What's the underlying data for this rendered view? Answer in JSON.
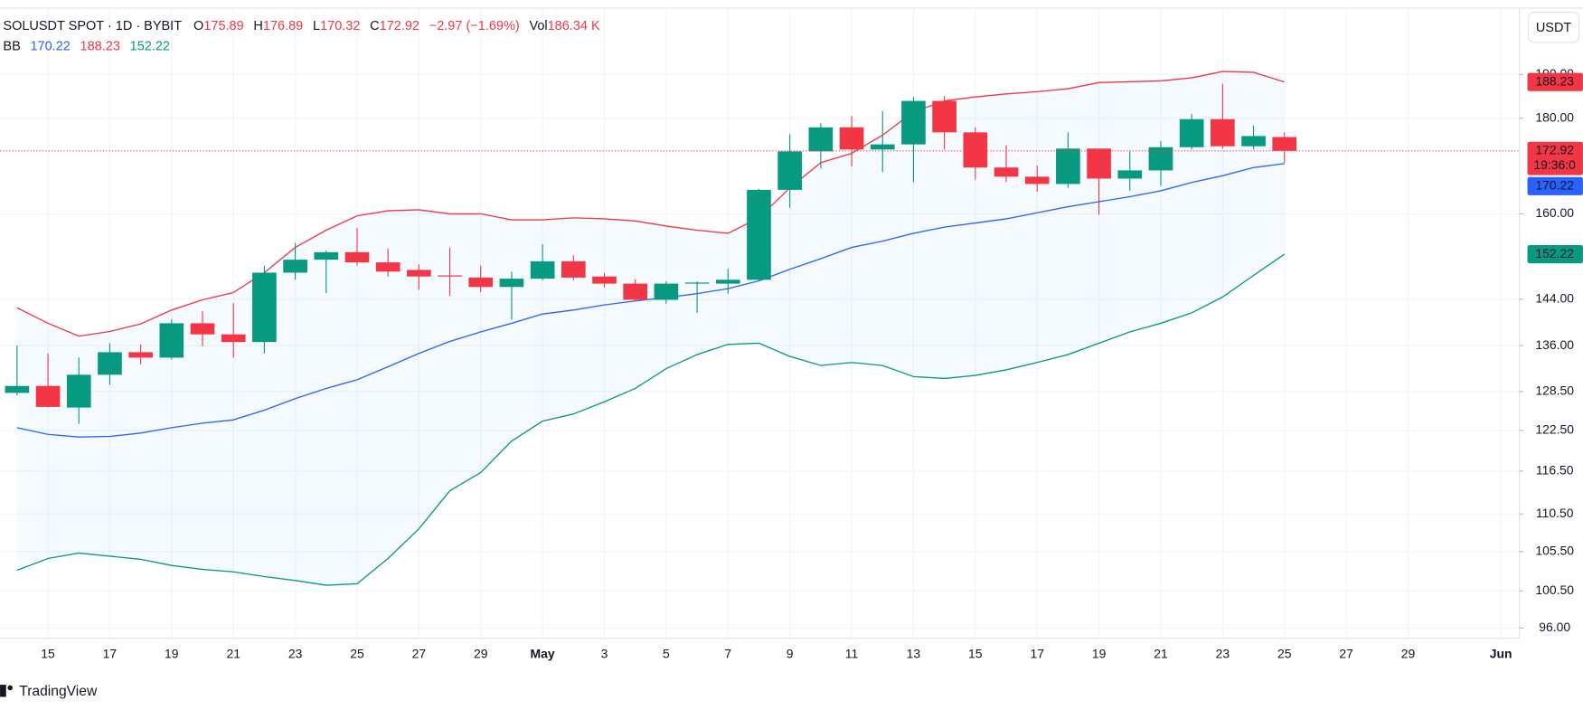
{
  "chart_data": {
    "type": "candlestick",
    "symbol": "SOLUSDT SPOT · 1D · BYBIT",
    "legend_labels": {
      "open": "O",
      "high": "H",
      "low": "L",
      "close": "C",
      "volume": "Vol"
    },
    "change": "−2.97 (−1.69%)",
    "volume": "186.34 K",
    "indicator": "BB",
    "currency": "USDT",
    "countdown": "19:36:0",
    "brand": "TradingView",
    "categories": [
      null,
      "15",
      null,
      "17",
      null,
      "19",
      null,
      "21",
      null,
      "23",
      null,
      "25",
      null,
      "27",
      null,
      "29",
      null,
      "May",
      null,
      "3",
      null,
      "5",
      null,
      "7",
      null,
      "9",
      null,
      "11",
      null,
      "13",
      null,
      "15",
      null,
      "17",
      null,
      "19",
      null,
      "21",
      null,
      "23",
      null,
      "25",
      null,
      "27",
      null,
      "29",
      null,
      null,
      "Jun",
      null
    ],
    "open": [
      128.3,
      129.4,
      126.0,
      131.2,
      134.9,
      134.0,
      139.8,
      137.9,
      136.6,
      148.8,
      151.2,
      152.6,
      150.7,
      149.3,
      148.3,
      147.9,
      146.2,
      147.7,
      150.9,
      148.1,
      146.8,
      143.9,
      146.8,
      146.8,
      147.5,
      164.8,
      172.8,
      178.0,
      173.2,
      174.3,
      183.9,
      176.9,
      169.4,
      167.5,
      166.0,
      173.4,
      167.1,
      168.8,
      173.7,
      179.8,
      173.9,
      175.89,
      null,
      null,
      null,
      null,
      null,
      null,
      null,
      null
    ],
    "high": [
      136.0,
      134.7,
      134.0,
      136.4,
      136.2,
      140.5,
      141.9,
      143.3,
      150.1,
      154.3,
      152.9,
      157.2,
      153.3,
      150.3,
      153.5,
      150.1,
      149.0,
      154.1,
      152.0,
      148.8,
      147.6,
      147.2,
      147.2,
      149.5,
      165.0,
      176.5,
      178.9,
      180.5,
      181.6,
      184.8,
      185.0,
      178.0,
      174.1,
      169.8,
      176.9,
      173.4,
      172.8,
      175.0,
      180.9,
      187.8,
      178.4,
      176.89,
      null,
      null,
      null,
      null,
      null,
      null,
      null,
      null
    ],
    "low": [
      127.9,
      126.0,
      123.5,
      129.6,
      132.9,
      133.7,
      135.9,
      134.0,
      134.7,
      147.5,
      145.1,
      150.1,
      148.1,
      145.7,
      144.6,
      145.3,
      140.4,
      147.4,
      147.4,
      146.1,
      143.7,
      143.2,
      141.6,
      145.0,
      147.3,
      161.2,
      169.2,
      169.6,
      168.5,
      166.4,
      173.2,
      166.9,
      166.4,
      164.4,
      165.2,
      159.8,
      164.6,
      165.6,
      173.2,
      173.4,
      173.2,
      170.32,
      null,
      null,
      null,
      null,
      null,
      null,
      null,
      null
    ],
    "close": [
      129.4,
      126.1,
      131.2,
      134.9,
      134.0,
      139.8,
      137.9,
      136.6,
      148.8,
      151.2,
      152.6,
      150.7,
      149.0,
      148.1,
      148.1,
      146.2,
      147.7,
      150.9,
      147.9,
      146.8,
      143.9,
      146.8,
      147.0,
      147.5,
      164.8,
      172.8,
      178.0,
      173.2,
      174.3,
      183.9,
      176.9,
      169.4,
      167.5,
      166.0,
      173.4,
      167.1,
      168.8,
      173.7,
      179.8,
      173.9,
      176.1,
      172.92,
      null,
      null,
      null,
      null,
      null,
      null,
      null,
      null
    ],
    "bb_upper": [
      142.5,
      139.8,
      137.6,
      138.4,
      139.7,
      142.1,
      143.9,
      145.2,
      148.8,
      153.5,
      156.8,
      159.6,
      160.6,
      160.8,
      160.0,
      160.0,
      158.8,
      158.8,
      159.2,
      159.0,
      158.6,
      157.6,
      156.8,
      156.2,
      159.2,
      165.2,
      170.4,
      172.4,
      176.3,
      181.4,
      183.9,
      184.8,
      185.5,
      186.0,
      186.7,
      188.1,
      188.3,
      188.5,
      189.2,
      190.7,
      190.5,
      188.23,
      null,
      null,
      null,
      null,
      null,
      null,
      null,
      null
    ],
    "bb_mid": [
      122.9,
      121.9,
      121.5,
      121.6,
      122.1,
      122.9,
      123.6,
      124.1,
      125.6,
      127.4,
      129.0,
      130.4,
      132.5,
      134.7,
      136.7,
      138.3,
      139.8,
      141.4,
      142.1,
      143.0,
      143.7,
      144.3,
      145.0,
      145.9,
      147.3,
      149.4,
      151.4,
      153.5,
      154.7,
      156.2,
      157.4,
      158.2,
      159.0,
      160.2,
      161.4,
      162.4,
      163.4,
      164.6,
      166.3,
      167.7,
      169.4,
      170.22,
      null,
      null,
      null,
      null,
      null,
      null,
      null,
      null
    ],
    "bb_lower": [
      103.1,
      104.6,
      105.3,
      104.9,
      104.5,
      103.7,
      103.2,
      102.9,
      102.3,
      101.8,
      101.2,
      101.4,
      104.6,
      108.5,
      113.7,
      116.3,
      120.9,
      123.9,
      125.0,
      126.9,
      129.0,
      132.2,
      134.5,
      136.2,
      136.4,
      134.2,
      132.7,
      133.2,
      132.7,
      130.9,
      130.6,
      131.1,
      132.0,
      133.2,
      134.5,
      136.4,
      138.3,
      139.8,
      141.6,
      144.4,
      148.3,
      152.22,
      null,
      null,
      null,
      null,
      null,
      null,
      null,
      null
    ],
    "up_color": "#089981",
    "down_color": "#f23645",
    "upper_color": "#f23645",
    "mid_color": "#2962ff",
    "lower_color": "#089981",
    "band_fill": "#2196f3",
    "xlim": [
      -0.55,
      48.6
    ],
    "ylim": [
      94.8,
      206.2
    ],
    "log_scale": true,
    "grid": true,
    "yticks": [
      {
        "value": 96,
        "label": "96.00"
      },
      {
        "value": 100.5,
        "label": "100.50"
      },
      {
        "value": 105.5,
        "label": "105.50"
      },
      {
        "value": 110.5,
        "label": "110.50"
      },
      {
        "value": 116.5,
        "label": "116.50"
      },
      {
        "value": 122.5,
        "label": "122.50"
      },
      {
        "value": 128.5,
        "label": "128.50"
      },
      {
        "value": 136,
        "label": "136.00"
      },
      {
        "value": 144,
        "label": "144.00"
      },
      {
        "value": 160,
        "label": "160.00"
      },
      {
        "value": 180,
        "label": "180.00"
      },
      {
        "value": 190,
        "label": "190.00"
      }
    ]
  }
}
